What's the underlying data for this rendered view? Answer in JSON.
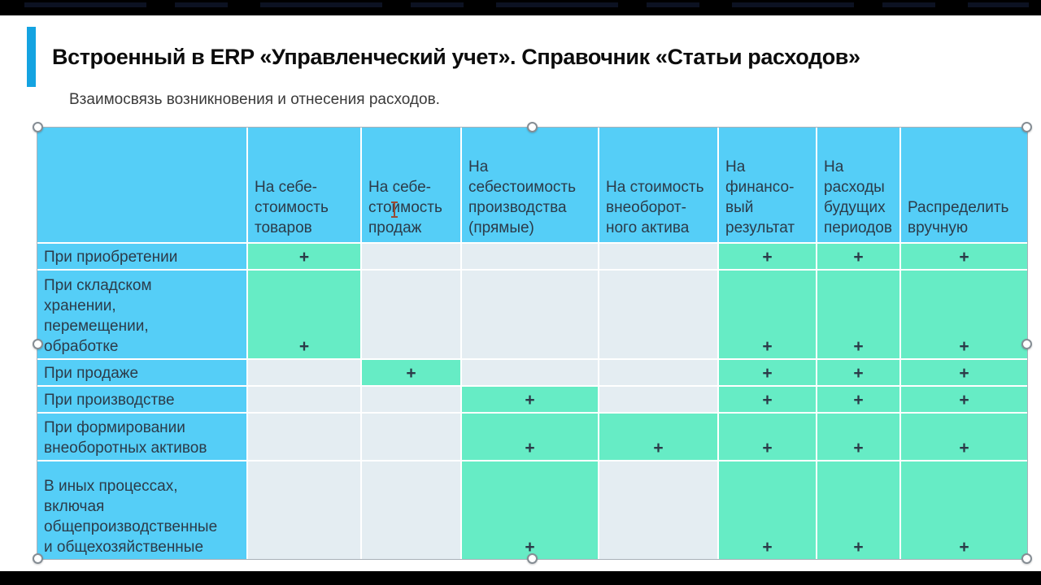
{
  "slide": {
    "title": "Встроенный в ERP «Управленческий учет». Справочник «Статьи расходов»",
    "subtitle": "Взаимосвязь возникновения и отнесения расходов."
  },
  "table": {
    "corner_label": "",
    "mark": "+",
    "columns": [
      "На себе-\nстоимость\nтоваров",
      "На себе-\nстоимость\nпродаж",
      "На\nсебестоимость\nпроизводства\n(прямые)",
      "На стоимость\nвнеоборот-\nного актива",
      "На\nфинансо-\nвый\nрезультат",
      "На\nрасходы\nбудущих\nпериодов",
      "Распределить\nвручную"
    ],
    "rows": [
      {
        "label": "При приобретении",
        "cells": [
          "+",
          "",
          "",
          "",
          "+",
          "+",
          "+"
        ]
      },
      {
        "label": "При складском\nхранении,\nперемещении,\nобработке",
        "cells": [
          "+",
          "",
          "",
          "",
          "+",
          "+",
          "+"
        ]
      },
      {
        "label": "При продаже",
        "cells": [
          "",
          "+",
          "",
          "",
          "+",
          "+",
          "+"
        ]
      },
      {
        "label": "При производстве",
        "cells": [
          "",
          "",
          "+",
          "",
          "+",
          "+",
          "+"
        ]
      },
      {
        "label": "При формировании\nвнеоборотных активов",
        "cells": [
          "",
          "",
          "+",
          "+",
          "+",
          "+",
          "+"
        ]
      },
      {
        "label": "В иных процессах,\nвключая\nобщепроизводственные\nи общехозяйственные",
        "cells": [
          "",
          "",
          "+",
          "",
          "+",
          "+",
          "+"
        ]
      }
    ]
  },
  "colors": {
    "header_blue": "#55cef7",
    "cell_green": "#66ecc5",
    "cell_gray": "#e4edf2",
    "table_text": "#2c3b49",
    "accent_bar": "#14a3e1",
    "selection_handle_border": "#858d94"
  }
}
